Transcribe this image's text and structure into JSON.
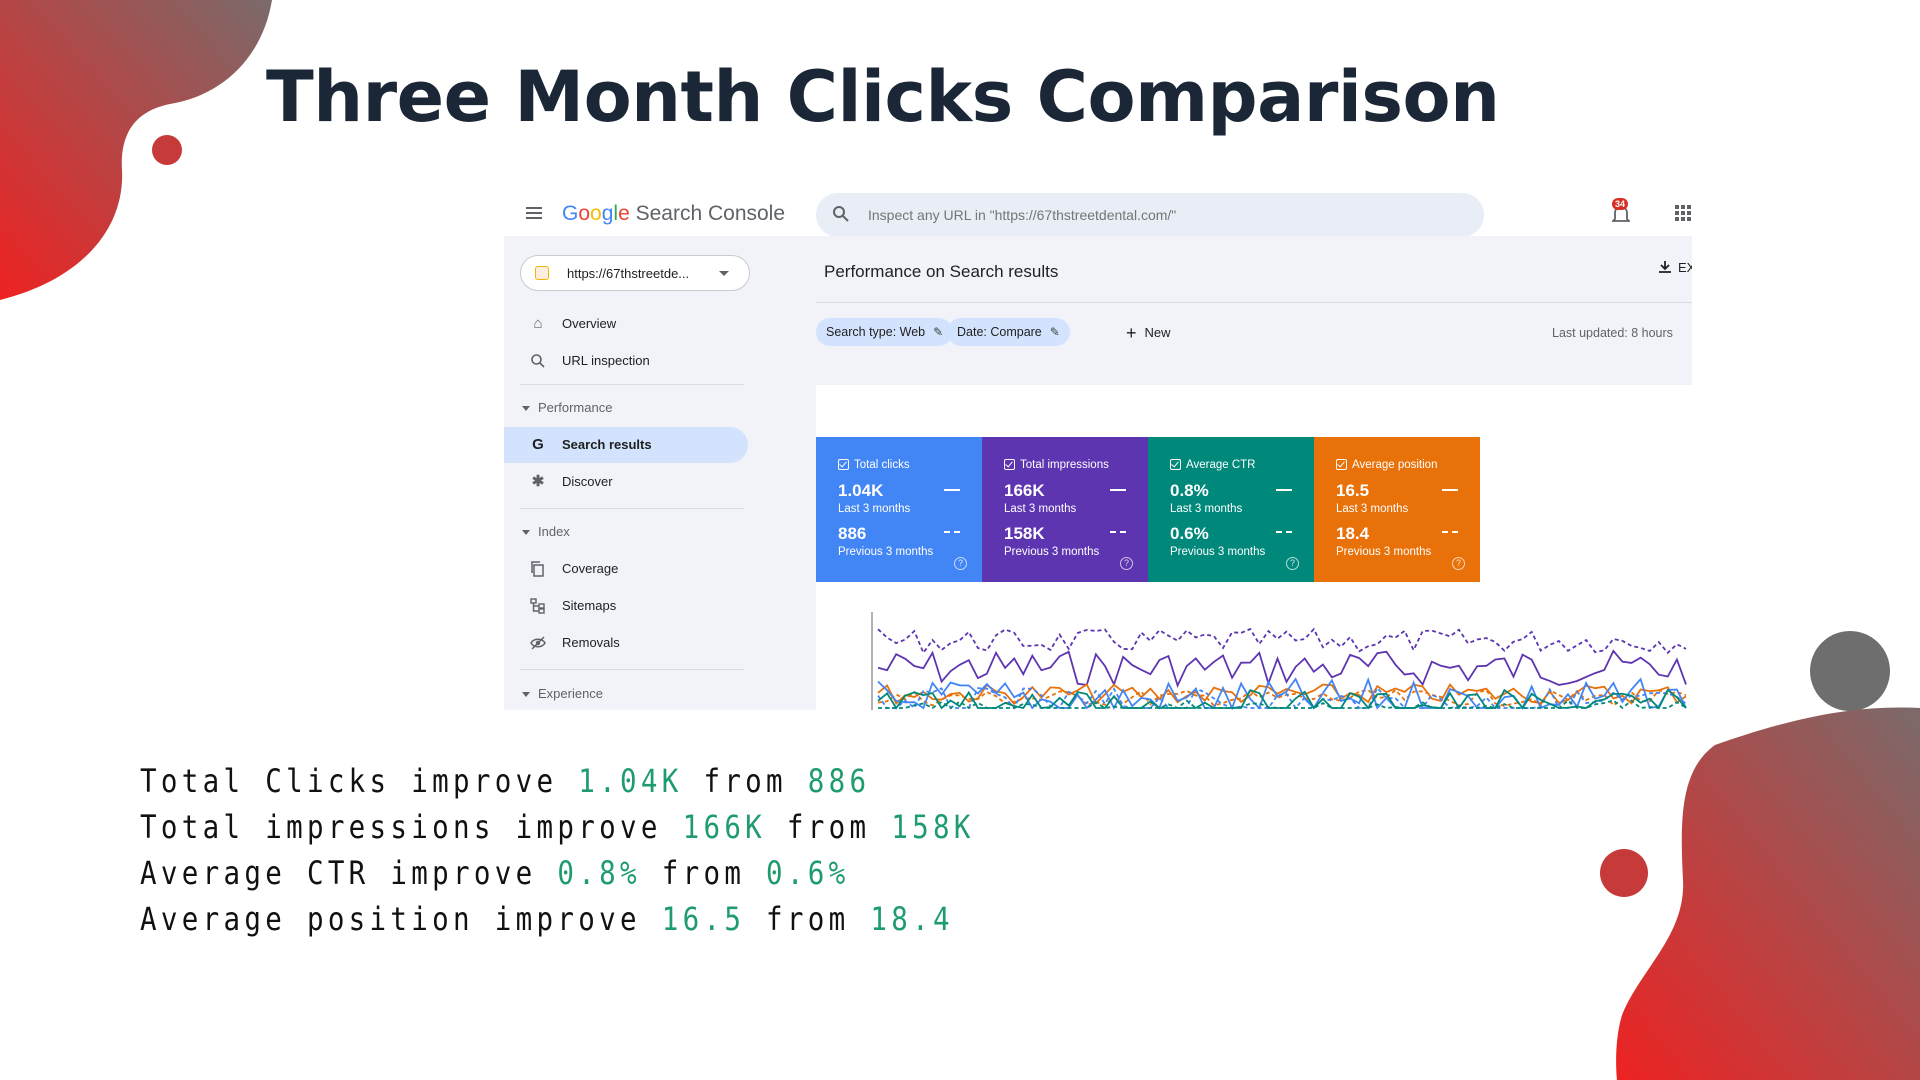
{
  "slide_title": "Three Month Clicks Comparison",
  "app": {
    "brand": {
      "g1": "G",
      "g2": "o",
      "g3": "o",
      "g4": "g",
      "g5": "l",
      "g6": "e",
      "rest": "Search Console"
    },
    "search_placeholder": "Inspect any URL in \"https://67thstreetdental.com/\"",
    "notification_count": "34",
    "property_label": "https://67thstreetde...",
    "nav": {
      "overview": "Overview",
      "url_inspection": "URL inspection",
      "performance_header": "Performance",
      "search_results": "Search results",
      "discover": "Discover",
      "index_header": "Index",
      "coverage": "Coverage",
      "sitemaps": "Sitemaps",
      "removals": "Removals",
      "experience_header": "Experience"
    },
    "page_title": "Performance on Search results",
    "export_label": "EX",
    "filters": {
      "search_type": "Search type: Web",
      "date": "Date: Compare",
      "new": "New"
    },
    "last_updated": "Last updated: 8 hours",
    "cards": [
      {
        "title": "Total clicks",
        "current": "1.04K",
        "current_label": "Last 3 months",
        "previous": "886",
        "previous_label": "Previous 3 months",
        "color": "#4285f4"
      },
      {
        "title": "Total impressions",
        "current": "166K",
        "current_label": "Last 3 months",
        "previous": "158K",
        "previous_label": "Previous 3 months",
        "color": "#5e35b1"
      },
      {
        "title": "Average CTR",
        "current": "0.8%",
        "current_label": "Last 3 months",
        "previous": "0.6%",
        "previous_label": "Previous 3 months",
        "color": "#00897b"
      },
      {
        "title": "Average position",
        "current": "16.5",
        "current_label": "Last 3 months",
        "previous": "18.4",
        "previous_label": "Previous 3 months",
        "color": "#e8710a"
      }
    ]
  },
  "summary": [
    {
      "prefix": "Total Clicks improve ",
      "new": "1.04K",
      "mid": " from ",
      "old": "886"
    },
    {
      "prefix": "Total impressions improve ",
      "new": "166K",
      "mid": " from ",
      "old": "158K"
    },
    {
      "prefix": "Average CTR improve ",
      "new": "0.8%",
      "mid": " from ",
      "old": "0.6%"
    },
    {
      "prefix": "Average position improve ",
      "new": "16.5",
      "mid": " from ",
      "old": "18.4"
    }
  ],
  "colors": {
    "title": "#1b2636",
    "highlight": "#1f9c6e",
    "deco_red": "#e52b2b",
    "deco_gray": "#7a6a6a"
  }
}
